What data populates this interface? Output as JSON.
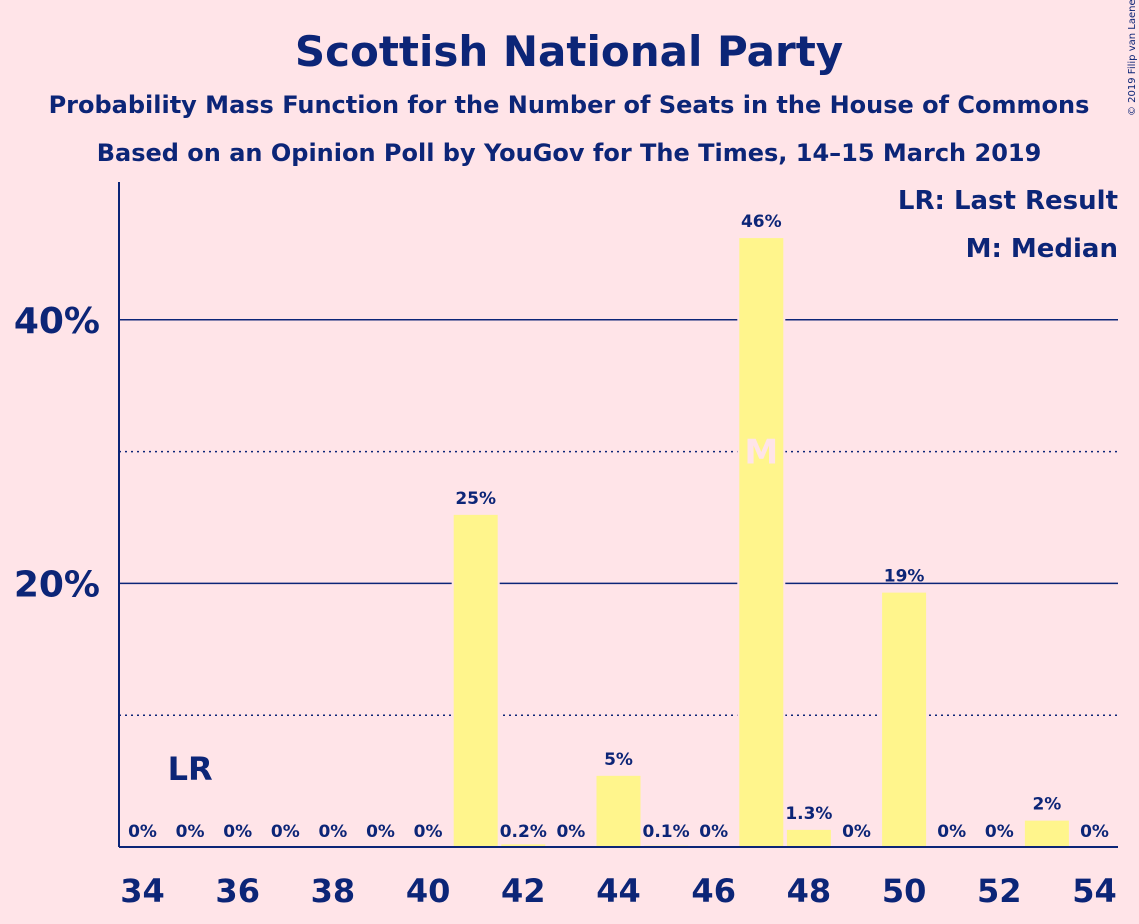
{
  "chart_data": {
    "type": "bar",
    "title": "Scottish National Party",
    "subtitle": "Probability Mass Function for the Number of Seats in the House of Commons",
    "subtitle2": "Based on an Opinion Poll by YouGov for The Times, 14–15 March 2019",
    "legend": [
      "LR: Last Result",
      "M: Median"
    ],
    "copyright": "© 2019 Filip van Laenen",
    "x": [
      34,
      35,
      36,
      37,
      38,
      39,
      40,
      41,
      42,
      43,
      44,
      45,
      46,
      47,
      48,
      49,
      50,
      51,
      52,
      53,
      54
    ],
    "values": [
      0,
      0,
      0,
      0,
      0,
      0,
      0,
      25.2,
      0.2,
      0,
      5.4,
      0.1,
      0,
      46.2,
      1.3,
      0,
      19.3,
      0,
      0,
      2,
      0
    ],
    "labels": [
      "0%",
      "0%",
      "0%",
      "0%",
      "0%",
      "0%",
      "0%",
      "25%",
      "0.2%",
      "0%",
      "5%",
      "0.1%",
      "0%",
      "46%",
      "1.3%",
      "0%",
      "19%",
      "0%",
      "0%",
      "2%",
      "0%"
    ],
    "xticks": [
      34,
      36,
      38,
      40,
      42,
      44,
      46,
      48,
      50,
      52,
      54
    ],
    "yticks": [
      {
        "value": 20,
        "label": "20%"
      },
      {
        "value": 40,
        "label": "40%"
      }
    ],
    "minor_gridlines": [
      10,
      30
    ],
    "ylim": [
      0,
      50
    ],
    "last_result": {
      "x": 35,
      "label": "LR"
    },
    "median": {
      "x": 47,
      "label": "M"
    },
    "colors": {
      "bar": "#FFF58C",
      "axis": "#0C2577",
      "background": "#FFE4E8"
    }
  }
}
